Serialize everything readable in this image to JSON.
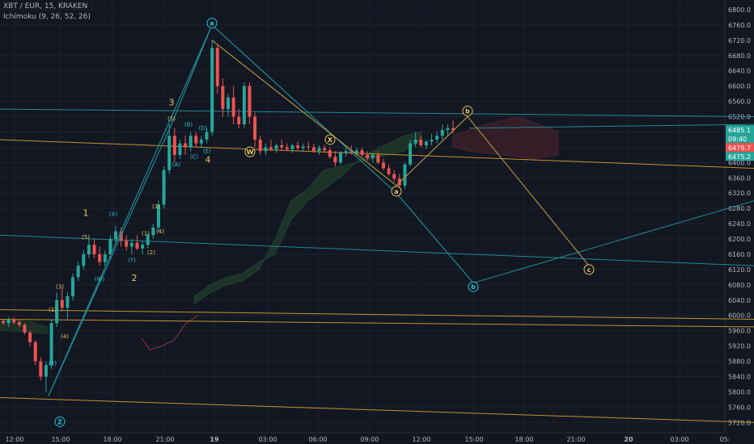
{
  "header": {
    "symbol_line": "XBT / EUR, 15, KRAKEN",
    "indicator_line": "Ichimoku (9, 26, 52, 26)"
  },
  "price_badges": {
    "last": "6485.1",
    "countdown": "09:40",
    "upper": "6479.7",
    "lower": "6475.2"
  },
  "colors": {
    "background": "#131722",
    "grid": "#1e2230",
    "up": "#26a69a",
    "down": "#ef5350",
    "teal_line": "#1f8b94",
    "orange_line": "#c8902c",
    "wave_yellow": "#e6c35c",
    "cloud_green": "#1f3a2a",
    "cloud_red": "#3a1f27"
  },
  "chart_data": {
    "type": "candlestick",
    "ylim": [
      5710,
      6820
    ],
    "y_ticks": [
      "6800.0",
      "6760.0",
      "6720.0",
      "6680.0",
      "6640.0",
      "6600.0",
      "6560.0",
      "6520.0",
      "6480.0",
      "6440.0",
      "6400.0",
      "6360.0",
      "6320.0",
      "6280.0",
      "6240.0",
      "6200.0",
      "6160.0",
      "6120.0",
      "6080.0",
      "6040.0",
      "6000.0",
      "5960.0",
      "5920.0",
      "5880.0",
      "5840.0",
      "5800.0",
      "5760.0",
      "5720.0"
    ],
    "x_ticks": [
      "12:00",
      "15:00",
      "18:00",
      "21:00",
      "19",
      "03:00",
      "06:00",
      "09:00",
      "12:00",
      "15:00",
      "18:00",
      "21:00",
      "20",
      "03:00",
      "05:"
    ],
    "candles": [
      [
        5985,
        5990,
        5975,
        5980
      ],
      [
        5980,
        5995,
        5970,
        5990
      ],
      [
        5990,
        5995,
        5978,
        5982
      ],
      [
        5982,
        5990,
        5970,
        5975
      ],
      [
        5975,
        5980,
        5950,
        5955
      ],
      [
        5955,
        5962,
        5920,
        5930
      ],
      [
        5930,
        5935,
        5870,
        5880
      ],
      [
        5880,
        5890,
        5830,
        5840
      ],
      [
        5840,
        5880,
        5800,
        5870
      ],
      [
        5870,
        5990,
        5860,
        5980
      ],
      [
        5980,
        6060,
        5970,
        6040
      ],
      [
        6040,
        6070,
        6010,
        6020
      ],
      [
        6020,
        6060,
        5990,
        6050
      ],
      [
        6050,
        6110,
        6040,
        6100
      ],
      [
        6100,
        6140,
        6090,
        6130
      ],
      [
        6130,
        6170,
        6120,
        6160
      ],
      [
        6160,
        6200,
        6150,
        6185
      ],
      [
        6185,
        6200,
        6150,
        6160
      ],
      [
        6160,
        6180,
        6130,
        6140
      ],
      [
        6140,
        6170,
        6130,
        6160
      ],
      [
        6160,
        6210,
        6150,
        6200
      ],
      [
        6200,
        6235,
        6185,
        6220
      ],
      [
        6220,
        6230,
        6180,
        6195
      ],
      [
        6195,
        6210,
        6170,
        6180
      ],
      [
        6180,
        6200,
        6160,
        6190
      ],
      [
        6190,
        6210,
        6170,
        6175
      ],
      [
        6175,
        6195,
        6160,
        6185
      ],
      [
        6185,
        6215,
        6175,
        6210
      ],
      [
        6210,
        6240,
        6200,
        6230
      ],
      [
        6230,
        6300,
        6220,
        6290
      ],
      [
        6290,
        6390,
        6280,
        6380
      ],
      [
        6380,
        6500,
        6370,
        6470
      ],
      [
        6470,
        6490,
        6400,
        6420
      ],
      [
        6420,
        6460,
        6410,
        6450
      ],
      [
        6450,
        6470,
        6420,
        6440
      ],
      [
        6440,
        6480,
        6430,
        6470
      ],
      [
        6470,
        6480,
        6440,
        6450
      ],
      [
        6450,
        6470,
        6440,
        6460
      ],
      [
        6460,
        6490,
        6450,
        6480
      ],
      [
        6480,
        6720,
        6470,
        6700
      ],
      [
        6700,
        6710,
        6580,
        6600
      ],
      [
        6600,
        6620,
        6520,
        6540
      ],
      [
        6540,
        6580,
        6520,
        6570
      ],
      [
        6570,
        6600,
        6500,
        6520
      ],
      [
        6520,
        6540,
        6490,
        6500
      ],
      [
        6500,
        6610,
        6490,
        6600
      ],
      [
        6600,
        6610,
        6500,
        6520
      ],
      [
        6520,
        6530,
        6440,
        6460
      ],
      [
        6460,
        6470,
        6420,
        6430
      ],
      [
        6430,
        6450,
        6420,
        6440
      ],
      [
        6440,
        6460,
        6430,
        6435
      ],
      [
        6435,
        6450,
        6425,
        6445
      ],
      [
        6445,
        6460,
        6430,
        6440
      ],
      [
        6440,
        6450,
        6430,
        6435
      ],
      [
        6435,
        6450,
        6425,
        6445
      ],
      [
        6445,
        6455,
        6430,
        6438
      ],
      [
        6438,
        6450,
        6428,
        6442
      ],
      [
        6442,
        6455,
        6432,
        6440
      ],
      [
        6440,
        6450,
        6425,
        6430
      ],
      [
        6430,
        6445,
        6420,
        6438
      ],
      [
        6438,
        6446,
        6425,
        6432
      ],
      [
        6432,
        6440,
        6410,
        6415
      ],
      [
        6415,
        6430,
        6390,
        6400
      ],
      [
        6400,
        6430,
        6395,
        6425
      ],
      [
        6425,
        6440,
        6415,
        6430
      ],
      [
        6430,
        6445,
        6420,
        6425
      ],
      [
        6425,
        6440,
        6418,
        6432
      ],
      [
        6432,
        6440,
        6415,
        6420
      ],
      [
        6420,
        6430,
        6405,
        6412
      ],
      [
        6412,
        6425,
        6400,
        6420
      ],
      [
        6420,
        6430,
        6395,
        6400
      ],
      [
        6400,
        6410,
        6380,
        6385
      ],
      [
        6385,
        6395,
        6365,
        6370
      ],
      [
        6370,
        6380,
        6350,
        6358
      ],
      [
        6358,
        6370,
        6335,
        6340
      ],
      [
        6340,
        6400,
        6330,
        6395
      ],
      [
        6395,
        6460,
        6390,
        6450
      ],
      [
        6450,
        6480,
        6440,
        6460
      ],
      [
        6460,
        6470,
        6440,
        6445
      ],
      [
        6445,
        6460,
        6435,
        6455
      ],
      [
        6455,
        6475,
        6445,
        6460
      ],
      [
        6460,
        6480,
        6450,
        6470
      ],
      [
        6470,
        6500,
        6460,
        6485
      ],
      [
        6485,
        6500,
        6470,
        6490
      ],
      [
        6490,
        6510,
        6475,
        6485
      ]
    ],
    "cloud_green": [
      [
        340,
        6160
      ],
      [
        360,
        6250
      ],
      [
        380,
        6300
      ],
      [
        400,
        6330
      ],
      [
        420,
        6360
      ],
      [
        440,
        6400
      ],
      [
        460,
        6430
      ],
      [
        480,
        6450
      ],
      [
        500,
        6470
      ],
      [
        520,
        6480
      ],
      [
        520,
        6460
      ],
      [
        500,
        6430
      ],
      [
        480,
        6420
      ],
      [
        460,
        6410
      ],
      [
        440,
        6400
      ],
      [
        420,
        6390
      ],
      [
        400,
        6380
      ],
      [
        380,
        6330
      ],
      [
        360,
        6300
      ],
      [
        340,
        6200
      ],
      [
        320,
        6120
      ],
      [
        300,
        6090
      ],
      [
        280,
        6080
      ],
      [
        260,
        6060
      ],
      [
        240,
        6030
      ],
      [
        240,
        6050
      ],
      [
        260,
        6080
      ],
      [
        280,
        6100
      ],
      [
        300,
        6110
      ],
      [
        320,
        6140
      ]
    ],
    "cloud_red": [
      [
        560,
        6470
      ],
      [
        600,
        6500
      ],
      [
        640,
        6520
      ],
      [
        680,
        6490
      ],
      [
        690,
        6480
      ],
      [
        690,
        6420
      ],
      [
        660,
        6410
      ],
      [
        620,
        6420
      ],
      [
        580,
        6430
      ],
      [
        560,
        6440
      ]
    ],
    "teal_lines": [
      [
        [
          0,
          6210
        ],
        [
          932,
          6130
        ]
      ],
      [
        [
          0,
          6540
        ],
        [
          932,
          6520
        ]
      ],
      [
        [
          580,
          6490
        ],
        [
          932,
          6500
        ]
      ],
      [
        [
          585,
          6085
        ],
        [
          932,
          6300
        ]
      ]
    ],
    "orange_lines": [
      [
        [
          0,
          6460
        ],
        [
          932,
          6385
        ]
      ],
      [
        [
          0,
          6015
        ],
        [
          932,
          5990
        ]
      ],
      [
        [
          0,
          5785
        ],
        [
          932,
          5720
        ]
      ],
      [
        [
          0,
          5990
        ],
        [
          932,
          5970
        ]
      ]
    ],
    "wave_teal": [
      [
        60,
        5790
      ],
      [
        262,
        6760
      ],
      [
        490,
        6320
      ],
      [
        585,
        6085
      ]
    ],
    "wave_teal2": [
      [
        60,
        5790
      ],
      [
        212,
        6500
      ],
      [
        262,
        6760
      ]
    ],
    "wave_yellow": [
      [
        262,
        6720
      ],
      [
        490,
        6340
      ],
      [
        578,
        6520
      ],
      [
        728,
        6130
      ]
    ],
    "labels": [
      {
        "t": "a",
        "x": 262,
        "y": 6765,
        "c": "teal",
        "circle": true
      },
      {
        "t": "a",
        "x": 490,
        "y": 6325,
        "c": "yellow",
        "circle": true
      },
      {
        "t": "b",
        "x": 578,
        "y": 6535,
        "c": "yellow",
        "circle": true
      },
      {
        "t": "b",
        "x": 585,
        "y": 6075,
        "c": "teal",
        "circle": true
      },
      {
        "t": "c",
        "x": 728,
        "y": 6120,
        "c": "yellow",
        "circle": true
      },
      {
        "t": "1",
        "x": 106,
        "y": 6260,
        "c": "yellow"
      },
      {
        "t": "2",
        "x": 166,
        "y": 6090,
        "c": "yellow"
      },
      {
        "t": "3",
        "x": 212,
        "y": 6550,
        "c": "yellow"
      },
      {
        "t": "4",
        "x": 257,
        "y": 6400,
        "c": "yellow"
      },
      {
        "t": "(1)",
        "x": 65,
        "y": 6010,
        "c": "yellow",
        "small": true
      },
      {
        "t": "(3)",
        "x": 74,
        "y": 6070,
        "c": "yellow",
        "small": true
      },
      {
        "t": "(4)",
        "x": 80,
        "y": 5940,
        "c": "yellow",
        "small": true
      },
      {
        "t": "(5)",
        "x": 106,
        "y": 6200,
        "c": "yellow",
        "small": true
      },
      {
        "t": "(W)",
        "x": 123,
        "y": 6090,
        "c": "teal",
        "small": true
      },
      {
        "t": "(X)",
        "x": 140,
        "y": 6260,
        "c": "teal",
        "small": true
      },
      {
        "t": "(Y)",
        "x": 163,
        "y": 6140,
        "c": "teal",
        "small": true
      },
      {
        "t": "(1)",
        "x": 180,
        "y": 6210,
        "c": "yellow",
        "small": true
      },
      {
        "t": "(2)",
        "x": 187,
        "y": 6160,
        "c": "yellow",
        "small": true
      },
      {
        "t": "(3)",
        "x": 193,
        "y": 6280,
        "c": "yellow",
        "small": true
      },
      {
        "t": "(4)",
        "x": 198,
        "y": 6215,
        "c": "yellow",
        "small": true
      },
      {
        "t": "(5)",
        "x": 212,
        "y": 6510,
        "c": "yellow",
        "small": true
      },
      {
        "t": "(A)",
        "x": 218,
        "y": 6390,
        "c": "teal",
        "small": true
      },
      {
        "t": "(B)",
        "x": 233,
        "y": 6495,
        "c": "teal",
        "small": true
      },
      {
        "t": "(C)",
        "x": 240,
        "y": 6410,
        "c": "teal",
        "small": true
      },
      {
        "t": "(D)",
        "x": 251,
        "y": 6485,
        "c": "teal",
        "small": true
      },
      {
        "t": "(E)",
        "x": 256,
        "y": 6425,
        "c": "teal",
        "small": true
      },
      {
        "t": "(2)",
        "x": 65,
        "y": 5870,
        "c": "teal",
        "small": true
      },
      {
        "t": "Z",
        "x": 74,
        "y": 5722,
        "c": "teal",
        "circle": true
      },
      {
        "t": "W",
        "x": 309,
        "y": 6428,
        "c": "yellow",
        "circle": true
      },
      {
        "t": "X",
        "x": 408,
        "y": 6460,
        "c": "yellow",
        "circle": true
      }
    ]
  }
}
